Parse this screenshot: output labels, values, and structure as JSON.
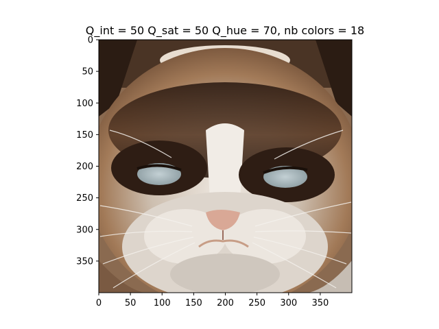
{
  "chart_data": {
    "type": "heatmap",
    "title": "Q_int = 50 Q_sat = 50 Q_hue = 70, nb colors = 18",
    "xlabel": "",
    "ylabel": "",
    "xlim": [
      0,
      400
    ],
    "ylim": [
      400,
      0
    ],
    "xticks": [
      0,
      50,
      100,
      150,
      200,
      250,
      300,
      350
    ],
    "yticks": [
      0,
      50,
      100,
      150,
      200,
      250,
      300,
      350
    ],
    "image_subject": "grumpy-cat-face",
    "grid": false,
    "legend": "none",
    "palette": {
      "dark_brown": "#2e1d14",
      "brown": "#6b4a33",
      "tan": "#a27a58",
      "light_tan": "#c9a583",
      "fur_white": "#ece6df",
      "fur_gray": "#bdb7b0",
      "eye_blue": "#a9b8bd",
      "nose_pink": "#d9a896"
    }
  }
}
